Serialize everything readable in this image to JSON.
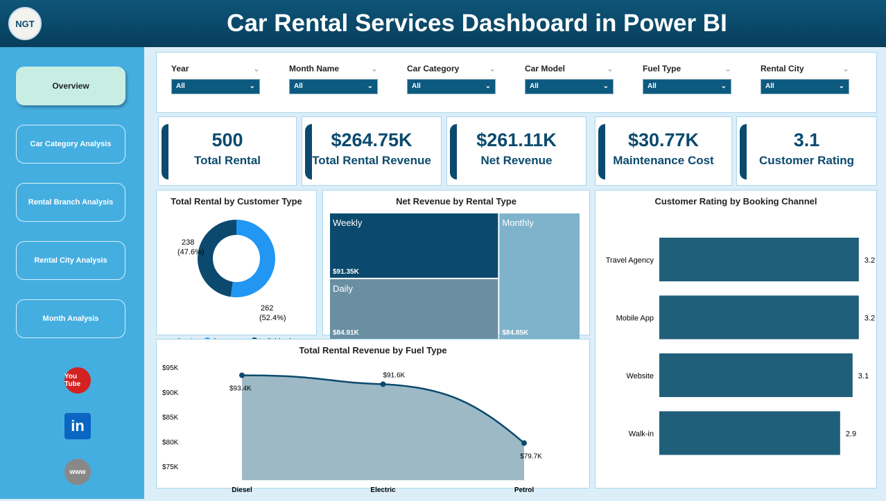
{
  "header": {
    "title": "Car Rental Services Dashboard in Power BI",
    "logo_text": "NGT"
  },
  "sidebar": {
    "items": [
      {
        "label": "Overview",
        "active": true
      },
      {
        "label": "Car Category Analysis"
      },
      {
        "label": "Rental Branch Analysis"
      },
      {
        "label": "Rental City Analysis"
      },
      {
        "label": "Month Analysis"
      }
    ],
    "social": [
      {
        "icon": "youtube-icon",
        "label": "You Tube"
      },
      {
        "icon": "linkedin-icon",
        "label": "in"
      },
      {
        "icon": "globe-icon",
        "label": "www"
      }
    ]
  },
  "slicers": [
    {
      "label": "Year",
      "value": "All"
    },
    {
      "label": "Month Name",
      "value": "All"
    },
    {
      "label": "Car Category",
      "value": "All"
    },
    {
      "label": "Car Model",
      "value": "All"
    },
    {
      "label": "Fuel Type",
      "value": "All"
    },
    {
      "label": "Rental City",
      "value": "All"
    }
  ],
  "kpis": [
    {
      "value": "500",
      "label": "Total Rental"
    },
    {
      "value": "$264.75K",
      "label": "Total Rental Revenue"
    },
    {
      "value": "$261.11K",
      "label": "Net Revenue"
    },
    {
      "value": "$30.77K",
      "label": "Maintenance Cost"
    },
    {
      "value": "3.1",
      "label": "Customer Rating"
    }
  ],
  "colors": {
    "primary": "#0b4a6e",
    "accent": "#2196f3",
    "bar": "#1f5f7a"
  },
  "chart_data": [
    {
      "type": "pie",
      "title": "Total Rental by Customer Type",
      "legend_title": "Cust...",
      "categories": [
        "Corporate",
        "Individual"
      ],
      "values": [
        262,
        238
      ],
      "labels": [
        "262 (52.4%)",
        "238 (47.6%)"
      ],
      "colors": [
        "#2196f3",
        "#0b4a6e"
      ]
    },
    {
      "type": "treemap",
      "title": "Net Revenue by Rental Type",
      "categories": [
        "Weekly",
        "Daily",
        "Monthly"
      ],
      "values": [
        91350,
        84910,
        84850
      ],
      "labels": [
        "$91.35K",
        "$84.91K",
        "$84.85K"
      ],
      "colors": [
        "#0b4a6e",
        "#6a8fa3",
        "#7fb2cb"
      ]
    },
    {
      "type": "area",
      "title": "Total Rental Revenue by Fuel Type",
      "categories": [
        "Diesel",
        "Electric",
        "Petrol"
      ],
      "values": [
        93400,
        91600,
        79700
      ],
      "labels": [
        "$93.4K",
        "$91.6K",
        "$79.7K"
      ],
      "yticks": [
        "$75K",
        "$80K",
        "$85K",
        "$90K",
        "$95K"
      ],
      "ylim": [
        75000,
        96000
      ]
    },
    {
      "type": "bar",
      "title": "Customer Rating by Booking Channel",
      "categories": [
        "Travel Agency",
        "Mobile App",
        "Website",
        "Walk-in"
      ],
      "values": [
        3.2,
        3.2,
        3.1,
        2.9
      ],
      "labels": [
        "3.2",
        "3.2",
        "3.1",
        "2.9"
      ],
      "xlim": [
        0,
        3.3
      ]
    }
  ]
}
